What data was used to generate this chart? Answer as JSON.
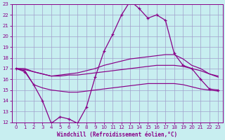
{
  "background_color": "#c8eef0",
  "grid_color": "#a0a0cc",
  "line_color": "#880088",
  "xlabel": "Windchill (Refroidissement éolien,°C)",
  "xlim": [
    -0.5,
    23.5
  ],
  "ylim": [
    12,
    23
  ],
  "xticks": [
    0,
    1,
    2,
    3,
    4,
    5,
    6,
    7,
    8,
    9,
    10,
    11,
    12,
    13,
    14,
    15,
    16,
    17,
    18,
    19,
    20,
    21,
    22,
    23
  ],
  "yticks": [
    12,
    13,
    14,
    15,
    16,
    17,
    18,
    19,
    20,
    21,
    22,
    23
  ],
  "line1_x": [
    0,
    1,
    2,
    3,
    4,
    5,
    6,
    7,
    8,
    9,
    10,
    11,
    12,
    13,
    14,
    15,
    16,
    17,
    18,
    19,
    20,
    21,
    22,
    23
  ],
  "line1_y": [
    17.0,
    16.7,
    15.5,
    14.0,
    11.9,
    12.5,
    12.3,
    11.9,
    13.4,
    16.2,
    18.6,
    20.2,
    22.0,
    23.3,
    22.6,
    21.7,
    22.0,
    21.5,
    18.4,
    17.3,
    17.0,
    16.0,
    15.1,
    15.0
  ],
  "line2_x": [
    0,
    1,
    2,
    3,
    4,
    5,
    6,
    7,
    8,
    9,
    10,
    11,
    12,
    13,
    14,
    15,
    16,
    17,
    18,
    19,
    20,
    21,
    22,
    23
  ],
  "line2_y": [
    17.0,
    17.0,
    16.7,
    16.5,
    16.3,
    16.4,
    16.5,
    16.6,
    16.8,
    17.0,
    17.3,
    17.5,
    17.7,
    17.9,
    18.0,
    18.1,
    18.2,
    18.3,
    18.3,
    17.9,
    17.3,
    17.0,
    16.5,
    16.2
  ],
  "line3_x": [
    0,
    1,
    2,
    3,
    4,
    5,
    6,
    7,
    8,
    9,
    10,
    11,
    12,
    13,
    14,
    15,
    16,
    17,
    18,
    19,
    20,
    21,
    22,
    23
  ],
  "line3_y": [
    17.0,
    16.9,
    16.7,
    16.5,
    16.3,
    16.3,
    16.4,
    16.4,
    16.5,
    16.6,
    16.7,
    16.8,
    16.9,
    17.0,
    17.1,
    17.2,
    17.3,
    17.3,
    17.3,
    17.2,
    17.0,
    16.8,
    16.5,
    16.3
  ],
  "line4_x": [
    0,
    1,
    2,
    3,
    4,
    5,
    6,
    7,
    8,
    9,
    10,
    11,
    12,
    13,
    14,
    15,
    16,
    17,
    18,
    19,
    20,
    21,
    22,
    23
  ],
  "line4_y": [
    17.0,
    16.8,
    15.5,
    15.2,
    15.0,
    14.9,
    14.8,
    14.8,
    14.9,
    15.0,
    15.1,
    15.2,
    15.3,
    15.4,
    15.5,
    15.6,
    15.6,
    15.6,
    15.6,
    15.5,
    15.3,
    15.1,
    15.0,
    14.9
  ]
}
